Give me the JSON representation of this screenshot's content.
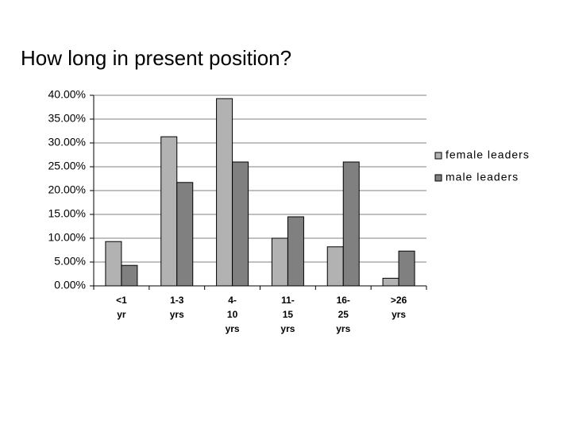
{
  "chart_data": {
    "type": "bar",
    "title": "How long in present position?",
    "categories": [
      "<1\nyr",
      "1-3\nyrs",
      "4-\n10\nyrs",
      "11-\n15\nyrs",
      "16-\n25\nyrs",
      ">26\nyrs"
    ],
    "series": [
      {
        "name": "female leaders",
        "color": "#b2b2b2",
        "values": [
          9.3,
          31.3,
          39.3,
          10.0,
          8.2,
          1.6
        ]
      },
      {
        "name": "male leaders",
        "color": "#808080",
        "values": [
          4.3,
          21.7,
          26.0,
          14.5,
          26.0,
          7.3
        ]
      }
    ],
    "ylim": [
      0,
      40
    ],
    "yticks": [
      {
        "value": 0,
        "label": "0.00%"
      },
      {
        "value": 5,
        "label": "5.00%"
      },
      {
        "value": 10,
        "label": "10.00%"
      },
      {
        "value": 15,
        "label": "15.00%"
      },
      {
        "value": 20,
        "label": "20.00%"
      },
      {
        "value": 25,
        "label": "25.00%"
      },
      {
        "value": 30,
        "label": "30.00%"
      },
      {
        "value": 35,
        "label": "35.00%"
      },
      {
        "value": 40,
        "label": "40.00%"
      }
    ],
    "grid": true,
    "legend": "right"
  }
}
